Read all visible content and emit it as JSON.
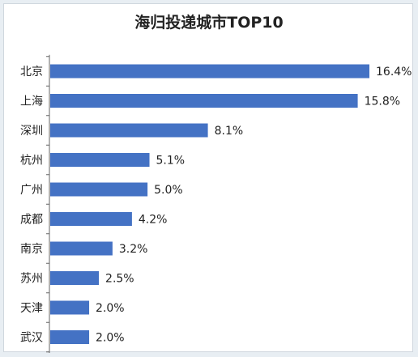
{
  "chart_data": {
    "type": "bar",
    "orientation": "horizontal",
    "title": "海归投递城市TOP10",
    "categories": [
      "北京",
      "上海",
      "深圳",
      "杭州",
      "广州",
      "成都",
      "南京",
      "苏州",
      "天津",
      "武汉"
    ],
    "values": [
      16.4,
      15.8,
      8.1,
      5.1,
      5.0,
      4.2,
      3.2,
      2.5,
      2.0,
      2.0
    ],
    "value_labels": [
      "16.4%",
      "15.8%",
      "8.1%",
      "5.1%",
      "5.0%",
      "4.2%",
      "3.2%",
      "2.5%",
      "2.0%",
      "2.0%"
    ],
    "xlim": [
      0,
      16.4
    ],
    "bar_color": "#4472c4",
    "grid": false,
    "legend": "none"
  }
}
